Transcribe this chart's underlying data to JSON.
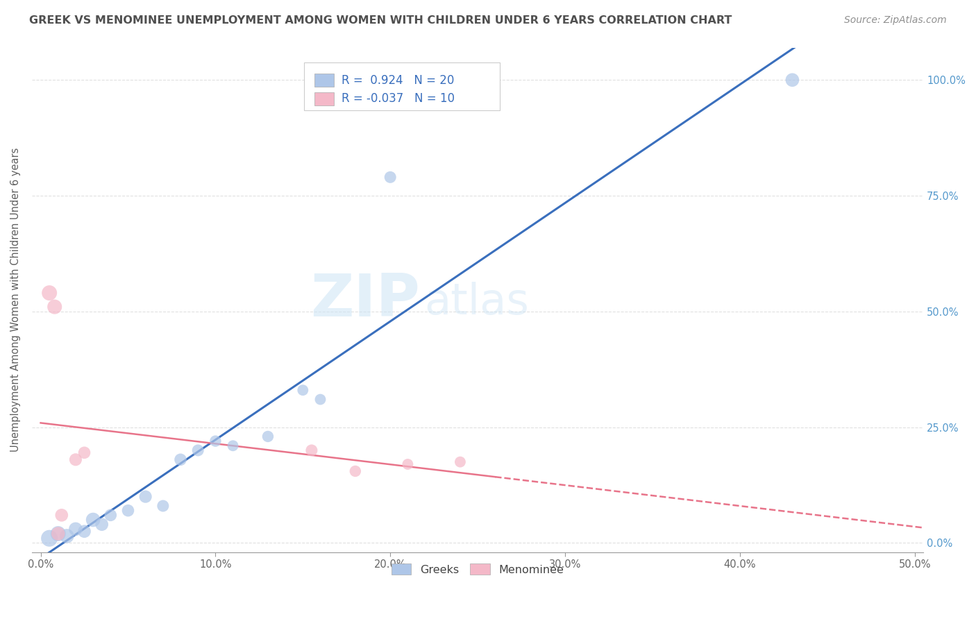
{
  "title": "GREEK VS MENOMINEE UNEMPLOYMENT AMONG WOMEN WITH CHILDREN UNDER 6 YEARS CORRELATION CHART",
  "source": "Source: ZipAtlas.com",
  "ylabel": "Unemployment Among Women with Children Under 6 years",
  "xlim": [
    -0.005,
    0.505
  ],
  "ylim": [
    -0.02,
    1.07
  ],
  "x_ticks": [
    0.0,
    0.1,
    0.2,
    0.3,
    0.4,
    0.5
  ],
  "x_tick_labels": [
    "0.0%",
    "10.0%",
    "20.0%",
    "30.0%",
    "40.0%",
    "50.0%"
  ],
  "y_ticks": [
    0.0,
    0.25,
    0.5,
    0.75,
    1.0
  ],
  "y_tick_labels_right": [
    "0.0%",
    "25.0%",
    "50.0%",
    "75.0%",
    "100.0%"
  ],
  "watermark_zip": "ZIP",
  "watermark_atlas": "atlas",
  "blue_color": "#aec6e8",
  "pink_color": "#f4b8c8",
  "blue_line_color": "#3a6fbd",
  "pink_line_color": "#e8748a",
  "greek_scatter_x": [
    0.005,
    0.01,
    0.015,
    0.02,
    0.025,
    0.03,
    0.035,
    0.04,
    0.05,
    0.06,
    0.07,
    0.08,
    0.09,
    0.1,
    0.11,
    0.13,
    0.15,
    0.16,
    0.2,
    0.43
  ],
  "greek_scatter_y": [
    0.01,
    0.02,
    0.015,
    0.03,
    0.025,
    0.05,
    0.04,
    0.06,
    0.07,
    0.1,
    0.08,
    0.18,
    0.2,
    0.22,
    0.21,
    0.23,
    0.33,
    0.31,
    0.79,
    1.0
  ],
  "greek_scatter_sizes": [
    300,
    250,
    220,
    200,
    180,
    220,
    180,
    160,
    160,
    170,
    150,
    160,
    150,
    140,
    130,
    140,
    130,
    130,
    150,
    200
  ],
  "menominee_scatter_x": [
    0.005,
    0.008,
    0.01,
    0.012,
    0.02,
    0.025,
    0.155,
    0.18,
    0.21,
    0.24
  ],
  "menominee_scatter_y": [
    0.54,
    0.51,
    0.02,
    0.06,
    0.18,
    0.195,
    0.2,
    0.155,
    0.17,
    0.175
  ],
  "menominee_scatter_sizes": [
    250,
    230,
    200,
    180,
    170,
    160,
    150,
    140,
    130,
    130
  ],
  "background_color": "#ffffff",
  "grid_color": "#dddddd",
  "title_color": "#505050",
  "source_color": "#909090",
  "legend_box_color": "#f0f0f0",
  "legend_border_color": "#cccccc",
  "r_text_color": "#3a6fbd",
  "right_tick_color": "#5599cc"
}
